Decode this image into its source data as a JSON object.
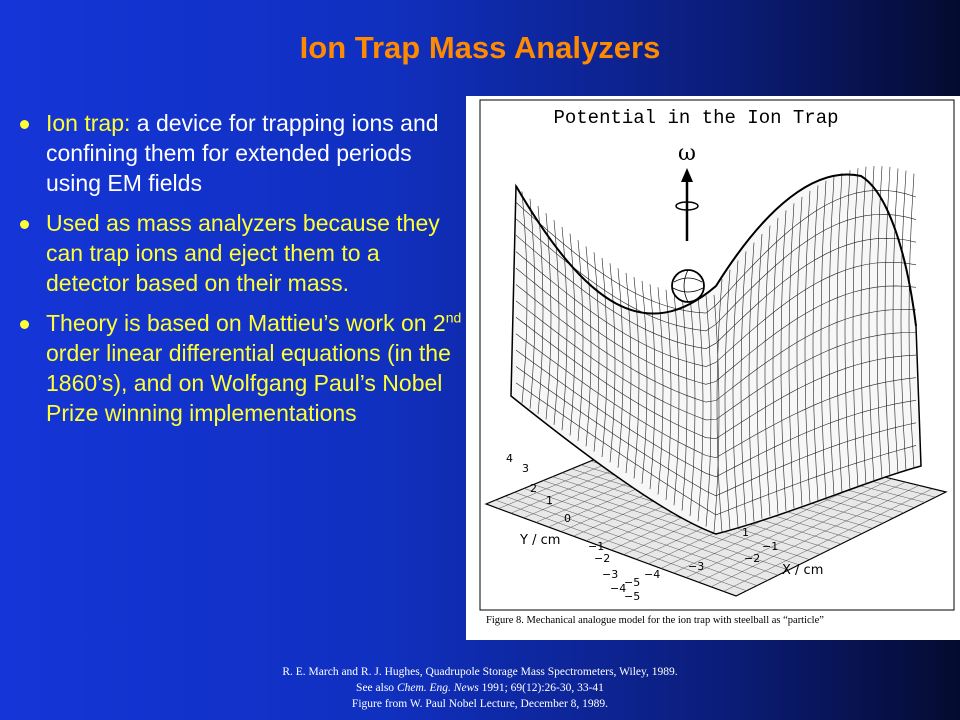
{
  "slide": {
    "title": "Ion Trap Mass Analyzers",
    "bullets": [
      {
        "label": "Ion trap:",
        "text_white": " a device for trapping ions and confining them for extended periods using EM fields"
      },
      {
        "text": "Used as mass analyzers because they can trap ions and eject them to a detector based on their mass."
      },
      {
        "text_before_sup": "Theory is based on Mattieu’s work on 2",
        "sup": "nd",
        "text_after_sup": " order linear differential equations (in the 1860’s), and on Wolfgang Paul’s Nobel Prize winning implementations"
      }
    ]
  },
  "figure": {
    "heading": "Potential in the Ion Trap",
    "omega_label": "ω",
    "y_axis_label": "Y / cm",
    "x_axis_label": "X / cm",
    "y_ticks": [
      "4",
      "3",
      "2",
      "1",
      "0",
      "−1",
      "−2",
      "−3",
      "−4",
      "−5"
    ],
    "x_ticks": [
      "−1",
      "−2",
      "−3",
      "−4",
      "−5"
    ],
    "x_ticks_small": [
      "1"
    ],
    "caption": "Figure 8.  Mechanical analogue model for the ion trap with steelball as “particle”"
  },
  "references": {
    "line1": "R. E. March and R. J. Hughes, Quadrupole Storage Mass Spectrometers, Wiley,  1989.",
    "line2_prefix": "See also ",
    "line2_journal": "Chem. Eng. News",
    "line2_suffix": " 1991; 69(12):26-30, 33-41",
    "line3": "Figure from W. Paul Nobel Lecture, December 8, 1989."
  }
}
